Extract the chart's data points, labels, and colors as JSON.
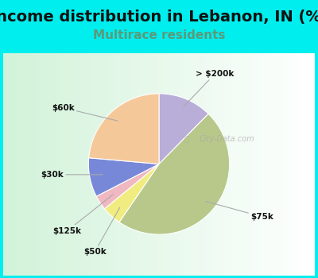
{
  "title": "Income distribution in Lebanon, IN (%)",
  "subtitle": "Multirace residents",
  "title_fontsize": 14,
  "subtitle_fontsize": 11,
  "bg_color": "#00EEEE",
  "plot_bg_left": "#d8f0d8",
  "plot_bg_right": "#f0f8f8",
  "labels": [
    "> $200k",
    "$75k",
    "$50k",
    "$125k",
    "$30k",
    "$60k"
  ],
  "sizes": [
    11,
    42,
    4,
    3,
    8,
    21
  ],
  "colors": [
    "#b8aed8",
    "#b8c88a",
    "#f0ec80",
    "#f0b8c0",
    "#7888d8",
    "#f5c89a"
  ],
  "startangle": 90,
  "watermark": "City-Data.com"
}
